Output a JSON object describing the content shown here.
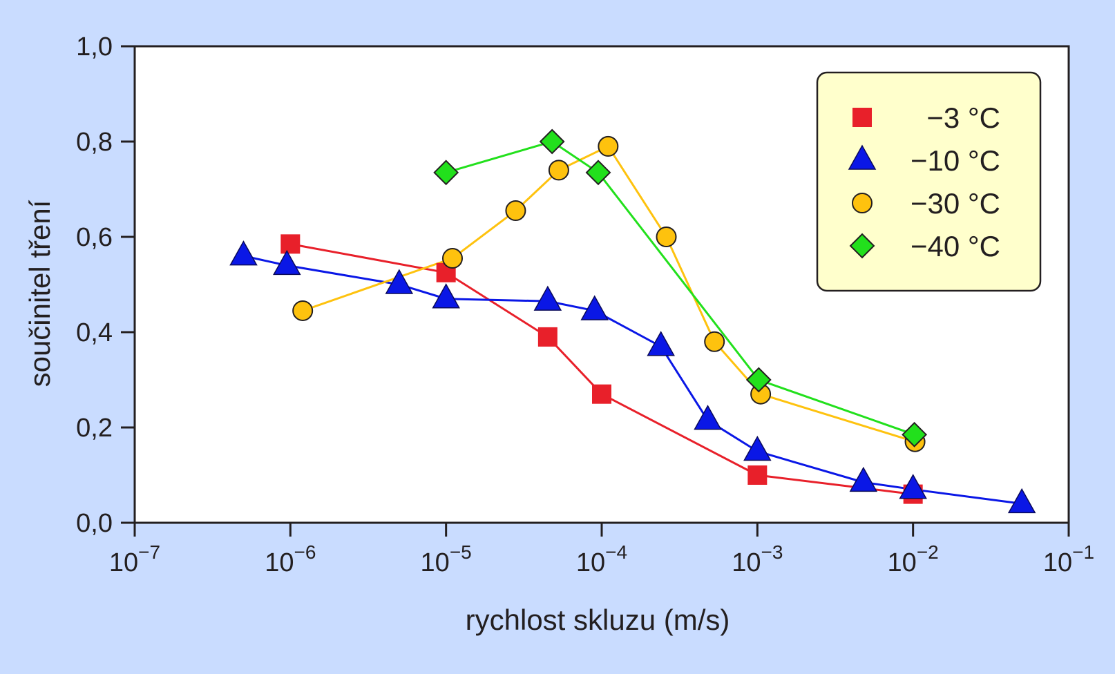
{
  "colors": {
    "background": "#c9dcff",
    "plot_background": "#ffffff",
    "legend_background": "#ffffcc"
  },
  "chart_data": {
    "type": "line",
    "title": "",
    "xlabel": "rychlost skluzu (m/s)",
    "ylabel": "součinitel tření",
    "xscale": "log",
    "xlim": [
      1e-07,
      0.1
    ],
    "ylim": [
      0.0,
      1.0
    ],
    "x_ticks": [
      {
        "base": "10",
        "exp": "−7",
        "value": 1e-07
      },
      {
        "base": "10",
        "exp": "−6",
        "value": 1e-06
      },
      {
        "base": "10",
        "exp": "−5",
        "value": 1e-05
      },
      {
        "base": "10",
        "exp": "−4",
        "value": 0.0001
      },
      {
        "base": "10",
        "exp": "−3",
        "value": 0.001
      },
      {
        "base": "10",
        "exp": "−2",
        "value": 0.01
      },
      {
        "base": "10",
        "exp": "−1",
        "value": 0.1
      }
    ],
    "y_ticks": [
      {
        "label": "0,0",
        "value": 0.0
      },
      {
        "label": "0,2",
        "value": 0.2
      },
      {
        "label": "0,4",
        "value": 0.4
      },
      {
        "label": "0,6",
        "value": 0.6
      },
      {
        "label": "0,8",
        "value": 0.8
      },
      {
        "label": "1,0",
        "value": 1.0
      }
    ],
    "grid": false,
    "legend_position": "top-right",
    "series": [
      {
        "name": "−3 °C",
        "color": "#e8202a",
        "marker": "square",
        "x": [
          1e-06,
          1e-05,
          4.5e-05,
          0.0001,
          0.001,
          0.01
        ],
        "y": [
          0.585,
          0.525,
          0.39,
          0.27,
          0.1,
          0.06
        ]
      },
      {
        "name": "−10 °C",
        "color": "#0a17e6",
        "marker": "triangle",
        "x": [
          5e-07,
          9.5e-07,
          5e-06,
          1e-05,
          4.5e-05,
          9e-05,
          0.00024,
          0.00048,
          0.001,
          0.0048,
          0.01,
          0.05
        ],
        "y": [
          0.56,
          0.54,
          0.5,
          0.47,
          0.465,
          0.445,
          0.37,
          0.215,
          0.15,
          0.085,
          0.07,
          0.04
        ]
      },
      {
        "name": "−30 °C",
        "color": "#fec20e",
        "marker": "circle",
        "x": [
          1.2e-06,
          1.1e-05,
          2.8e-05,
          5.3e-05,
          0.00011,
          0.00026,
          0.00053,
          0.00105,
          0.0103
        ],
        "y": [
          0.445,
          0.555,
          0.655,
          0.74,
          0.79,
          0.6,
          0.38,
          0.27,
          0.17
        ]
      },
      {
        "name": "−40 °C",
        "color": "#22e01c",
        "marker": "diamond",
        "x": [
          1e-05,
          4.8e-05,
          9.5e-05,
          0.00102,
          0.0102
        ],
        "y": [
          0.735,
          0.8,
          0.735,
          0.3,
          0.185
        ]
      }
    ]
  }
}
